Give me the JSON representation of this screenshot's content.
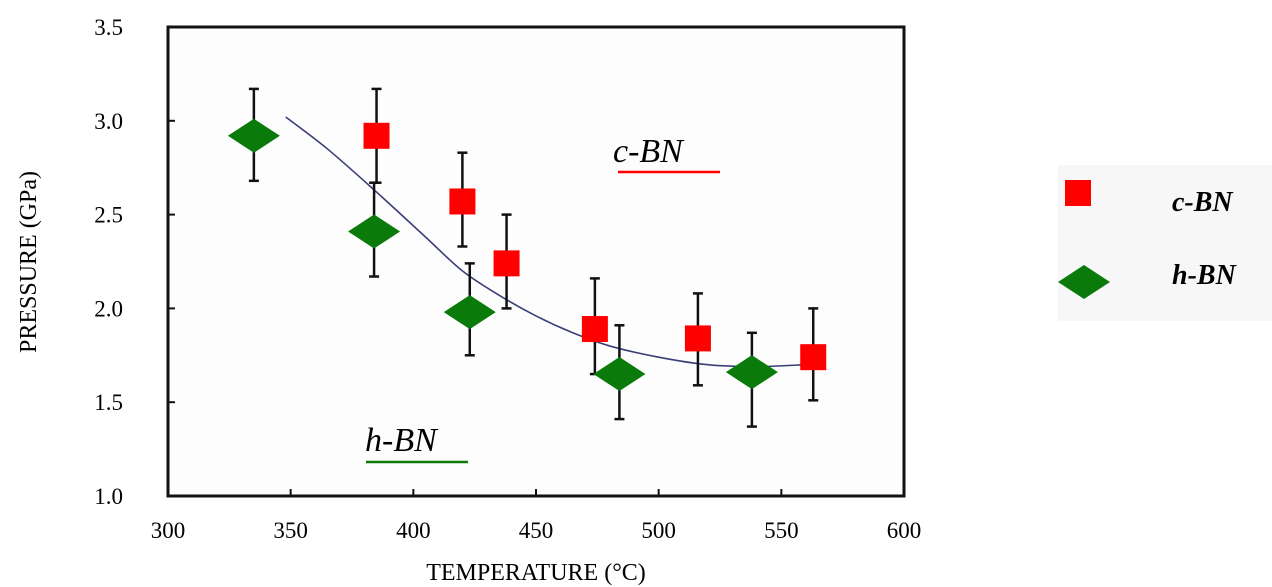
{
  "chart_data": {
    "type": "scatter",
    "xlabel": "TEMPERATURE (°C)",
    "ylabel": "PRESSURE (GPa)",
    "xlim": [
      300,
      600
    ],
    "ylim": [
      1.0,
      3.5
    ],
    "x_ticks": [
      "300",
      "350",
      "400",
      "450",
      "500",
      "550",
      "600"
    ],
    "y_ticks": [
      "1.0",
      "1.5",
      "2.0",
      "2.5",
      "3.0",
      "3.5"
    ],
    "series": [
      {
        "name": "c-BN",
        "marker": "square",
        "color": "#ff0000",
        "points": [
          {
            "x": 385,
            "y": 2.92,
            "err_low": 2.67,
            "err_high": 3.17
          },
          {
            "x": 420,
            "y": 2.57,
            "err_low": 2.33,
            "err_high": 2.83
          },
          {
            "x": 438,
            "y": 2.24,
            "err_low": 2.0,
            "err_high": 2.5
          },
          {
            "x": 474,
            "y": 1.89,
            "err_low": 1.65,
            "err_high": 2.16
          },
          {
            "x": 516,
            "y": 1.84,
            "err_low": 1.59,
            "err_high": 2.08
          },
          {
            "x": 563,
            "y": 1.74,
            "err_low": 1.51,
            "err_high": 2.0
          }
        ]
      },
      {
        "name": "h-BN",
        "marker": "diamond",
        "color": "#0a7a0a",
        "points": [
          {
            "x": 335,
            "y": 2.92,
            "err_low": 2.68,
            "err_high": 3.17
          },
          {
            "x": 384,
            "y": 2.41,
            "err_low": 2.17,
            "err_high": 2.67
          },
          {
            "x": 423,
            "y": 1.98,
            "err_low": 1.75,
            "err_high": 2.24
          },
          {
            "x": 484,
            "y": 1.65,
            "err_low": 1.41,
            "err_high": 1.91
          },
          {
            "x": 538,
            "y": 1.66,
            "err_low": 1.37,
            "err_high": 1.87
          }
        ]
      }
    ],
    "boundary_curve": [
      [
        348,
        3.02
      ],
      [
        365,
        2.85
      ],
      [
        385,
        2.62
      ],
      [
        405,
        2.38
      ],
      [
        420,
        2.2
      ],
      [
        435,
        2.07
      ],
      [
        450,
        1.96
      ],
      [
        465,
        1.87
      ],
      [
        480,
        1.8
      ],
      [
        500,
        1.74
      ],
      [
        520,
        1.7
      ],
      [
        540,
        1.69
      ],
      [
        560,
        1.7
      ]
    ],
    "annotations": {
      "c_bn_region": "c-BN",
      "h_bn_region": "h-BN"
    },
    "legend": {
      "position": "right",
      "entries": [
        "c-BN",
        "h-BN"
      ]
    },
    "curve_color": "#3b3f78",
    "c_underline_color": "#ff0000",
    "h_underline_color": "#0a7a0a"
  }
}
